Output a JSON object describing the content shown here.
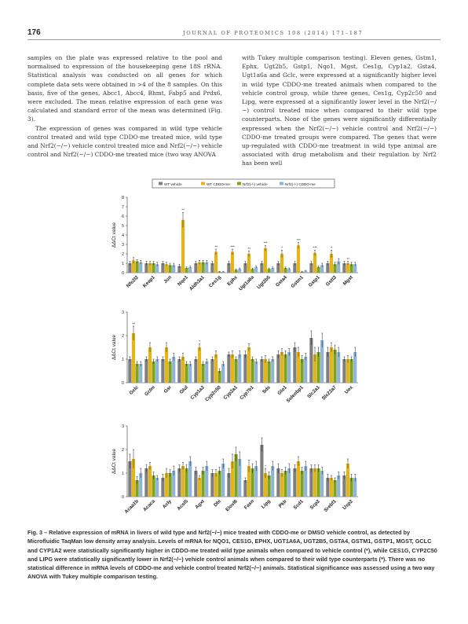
{
  "header": {
    "page_number": "176",
    "journal": "JOURNAL OF PROTEOMICS 108 (2014) 171–187"
  },
  "left_col": [
    "samples on the plate was expressed relative to the pool and normalised to expression of the housekeeping gene 18S rRNA. Statistical analysis was conducted on all genes for which complete data sets were obtained in >4 of the 8 samples. On this basis, five of the genes, Abcc1, Abcc4, Bhmt, Fabp5 and Prdx6, were excluded. The mean relative expression of each gene was calculated and standard error of the mean was determined (Fig. 3).",
    "The expression of genes was compared in wild type vehicle control treated and wild type CDDO-me treated mice, wild type and Nrf2(−/−) vehicle control treated mice and Nrf2(−/−) vehicle control and Nrf2(−/−) CDDO-me treated mice (two way ANOVA"
  ],
  "right_col": [
    "with Tukey multiple comparison testing). Eleven genes, Gstm1, Ephx, Ugt2b5, Gstp1, Nqo1, Mgst, Ces1g, Cyp1a2, Gsta4, Ugt1a6a and Gclc, were expressed at a significantly higher level in wild type CDDO-me treated animals when compared to the vehicle control group, while three genes, Ces1g, Cyp2c50 and Lipg, were expressed at a significantly lower level in the Nrf2(−/−) control treated mice when compared to their wild type counterparts. None of the genes were significantly differentially expressed when the Nrf2(−/−) vehicle control and Nrf2(−/−) CDDO-me treated groups were compared. The genes that were up-regulated with CDDO-me treatment in wild type animal are associated with drug metabolism and their regulation by Nrf2 has been well"
  ],
  "caption": "Fig. 3 – Relative expression of mRNA in livers of wild type and Nrf2(−/−) mice treated with CDDO-me or DMSO vehicle control, as detected by Microfluidic TaqMan low density array analysis. Levels of mRNA for NQO1, CES1G, EPHX, UGT1A6A, UGT2B5, GSTA4, GSTM1, GSTP1, MGST, GCLC and CYP1A2 were statistically significantly higher in CDDO-me treated wild type animals when compared to vehicle control (*), while CES1G, CYP2C50 and LIPG were statistically significantly lower in Nrf2(−/−) vehicle control animals when compared to their wild type counterparts (*). There was no statistical difference in mRNA levels of CDDO-me and vehicle control treated Nrf2(−/−) animals. Statistical significance was assessed using a two way ANOVA with Tukey multiple comparison testing.",
  "chart_data": [
    {
      "type": "bar",
      "legend": [
        "WT vehicle",
        "WT CDDO-me",
        "Nrf2(-/-) vehicle",
        "Nrf2(-/-) CDDO-me"
      ],
      "colors": [
        "#7f7f7f",
        "#e5b417",
        "#7fa31f",
        "#8eb4d9"
      ],
      "ylabel": "ΔΔCt value",
      "ylim": [
        0,
        8
      ],
      "yticks": [
        0,
        1,
        2,
        3,
        4,
        5,
        6,
        7,
        8
      ],
      "categories": [
        "Nfe2l2",
        "Keap1",
        "Jun",
        "Nqo1",
        "Aldh3a1",
        "Ces1g",
        "Ephx",
        "Ugt1a6a",
        "Ugt2b5",
        "Gsta4",
        "Gstm1",
        "Gstp1",
        "Gstt3",
        "Mgst"
      ],
      "series": [
        {
          "name": "WT vehicle",
          "values": [
            1.0,
            1.0,
            1.0,
            0.7,
            1.0,
            1.0,
            1.0,
            1.0,
            1.0,
            1.0,
            1.0,
            1.0,
            1.0,
            1.0
          ]
        },
        {
          "name": "WT CDDO-me",
          "values": [
            1.3,
            1.0,
            0.9,
            5.6,
            1.1,
            2.2,
            2.2,
            2.0,
            2.6,
            2.0,
            2.9,
            2.1,
            2.0,
            1.0
          ]
        },
        {
          "name": "Nrf2(-/-) vehicle",
          "values": [
            1.2,
            1.0,
            0.8,
            0.5,
            1.1,
            0.1,
            0.3,
            0.4,
            0.4,
            0.5,
            0.1,
            0.6,
            0.9,
            0.9
          ]
        },
        {
          "name": "Nrf2(-/-) CDDO-me",
          "values": [
            1.1,
            0.9,
            0.8,
            0.6,
            1.1,
            0.1,
            0.4,
            0.6,
            0.5,
            0.4,
            0.2,
            0.8,
            1.2,
            0.9
          ]
        }
      ],
      "errors": [
        [
          0.2,
          0.2,
          0.2,
          0.2,
          0.2,
          0.2,
          0.2,
          0.2,
          0.2,
          0.2,
          0.2,
          0.2,
          0.2,
          0.2
        ],
        [
          0.3,
          0.2,
          0.2,
          0.8,
          0.2,
          0.3,
          0.3,
          0.3,
          0.3,
          0.4,
          0.3,
          0.3,
          0.4,
          0.2
        ],
        [
          0.2,
          0.2,
          0.2,
          0.1,
          0.2,
          0.05,
          0.1,
          0.1,
          0.1,
          0.1,
          0.05,
          0.1,
          0.2,
          0.2
        ],
        [
          0.2,
          0.2,
          0.2,
          0.1,
          0.2,
          0.05,
          0.1,
          0.1,
          0.1,
          0.1,
          0.05,
          0.2,
          0.3,
          0.2
        ]
      ],
      "significance": [
        "",
        "",
        "",
        "**",
        "",
        "**",
        "***",
        "**",
        "***",
        "*",
        "***",
        "***",
        "*",
        "**"
      ]
    },
    {
      "type": "bar",
      "ylabel": "ΔΔCt value",
      "ylim": [
        0,
        3
      ],
      "yticks": [
        0,
        1,
        2,
        3
      ],
      "categories": [
        "Gclc",
        "Gclm",
        "Gsr",
        "Glul",
        "Cyp1a2",
        "Cyp2c50",
        "Cyp2a1",
        "Cyp7b1",
        "Sds",
        "Glo1",
        "Selenbp1",
        "Slc2a1",
        "Slc22a7",
        "Uox"
      ],
      "series": [
        {
          "name": "WT vehicle",
          "values": [
            1.0,
            1.0,
            1.0,
            1.0,
            1.0,
            1.0,
            1.2,
            1.2,
            1.0,
            1.2,
            1.5,
            1.9,
            1.3,
            1.0
          ]
        },
        {
          "name": "WT CDDO-me",
          "values": [
            2.1,
            1.5,
            1.5,
            1.1,
            1.5,
            1.2,
            1.2,
            1.5,
            1.0,
            1.3,
            1.3,
            1.2,
            1.5,
            1.0
          ]
        },
        {
          "name": "Nrf2(-/-) vehicle",
          "values": [
            0.8,
            0.9,
            0.9,
            0.8,
            0.8,
            0.5,
            1.0,
            1.0,
            0.9,
            1.2,
            1.0,
            1.3,
            1.4,
            1.0
          ]
        },
        {
          "name": "Nrf2(-/-) CDDO-me",
          "values": [
            0.8,
            1.0,
            1.1,
            0.8,
            0.9,
            0.8,
            1.2,
            0.9,
            1.0,
            1.3,
            1.1,
            1.8,
            1.3,
            1.3
          ]
        }
      ],
      "errors": [
        [
          0.1,
          0.1,
          0.1,
          0.1,
          0.1,
          0.1,
          0.1,
          0.15,
          0.1,
          0.15,
          0.2,
          0.3,
          0.2,
          0.1
        ],
        [
          0.3,
          0.2,
          0.2,
          0.15,
          0.15,
          0.15,
          0.15,
          0.15,
          0.15,
          0.15,
          0.2,
          0.3,
          0.2,
          0.15
        ],
        [
          0.1,
          0.1,
          0.1,
          0.1,
          0.1,
          0.1,
          0.1,
          0.1,
          0.1,
          0.15,
          0.15,
          0.2,
          0.2,
          0.1
        ],
        [
          0.1,
          0.1,
          0.15,
          0.1,
          0.1,
          0.1,
          0.15,
          0.1,
          0.1,
          0.15,
          0.15,
          0.3,
          0.2,
          0.2
        ]
      ],
      "significance": [
        "**",
        "",
        "",
        "",
        "*",
        "",
        "",
        "",
        "",
        "",
        "",
        "",
        "",
        ""
      ]
    },
    {
      "type": "bar",
      "ylabel": "ΔΔCt value",
      "ylim": [
        0,
        3
      ],
      "yticks": [
        0,
        1,
        2,
        3
      ],
      "categories": [
        "Acaa1b",
        "Acaca",
        "Acly",
        "Acsl5",
        "Agxt",
        "Dbi",
        "Elovl6",
        "Fasn",
        "Lipg",
        "Pklr",
        "Scd1",
        "Scp2",
        "Srebf1",
        "Usp2"
      ],
      "series": [
        {
          "name": "WT vehicle",
          "values": [
            1.5,
            1.2,
            0.8,
            1.2,
            1.1,
            1.0,
            1.0,
            0.7,
            2.2,
            1.2,
            1.2,
            1.2,
            0.8,
            0.9
          ]
        },
        {
          "name": "WT CDDO-me",
          "values": [
            1.6,
            1.3,
            1.0,
            1.3,
            0.8,
            1.0,
            1.5,
            1.3,
            1.0,
            1.0,
            1.5,
            1.2,
            0.8,
            1.4
          ]
        },
        {
          "name": "Nrf2(-/-) vehicle",
          "values": [
            0.7,
            0.9,
            1.0,
            1.2,
            1.1,
            1.1,
            1.8,
            1.2,
            0.9,
            1.1,
            1.1,
            1.2,
            0.7,
            0.8
          ]
        },
        {
          "name": "Nrf2(-/-) CDDO-me",
          "values": [
            1.0,
            0.8,
            1.1,
            1.5,
            1.3,
            1.4,
            1.6,
            1.3,
            1.3,
            1.2,
            1.3,
            1.1,
            0.9,
            0.8
          ]
        }
      ],
      "errors": [
        [
          0.3,
          0.15,
          0.15,
          0.15,
          0.15,
          0.15,
          0.2,
          0.1,
          0.3,
          0.2,
          0.15,
          0.15,
          0.15,
          0.15
        ],
        [
          0.4,
          0.15,
          0.2,
          0.15,
          0.1,
          0.15,
          0.3,
          0.25,
          0.2,
          0.15,
          0.2,
          0.15,
          0.1,
          0.2
        ],
        [
          0.15,
          0.15,
          0.15,
          0.15,
          0.15,
          0.15,
          0.3,
          0.2,
          0.15,
          0.15,
          0.15,
          0.15,
          0.1,
          0.15
        ],
        [
          0.2,
          0.1,
          0.2,
          0.2,
          0.2,
          0.2,
          0.3,
          0.2,
          0.2,
          0.2,
          0.2,
          0.15,
          0.15,
          0.15
        ]
      ],
      "significance": [
        "",
        "",
        "",
        "",
        "",
        "",
        "",
        "",
        "*",
        "",
        "",
        "",
        "",
        ""
      ]
    }
  ]
}
